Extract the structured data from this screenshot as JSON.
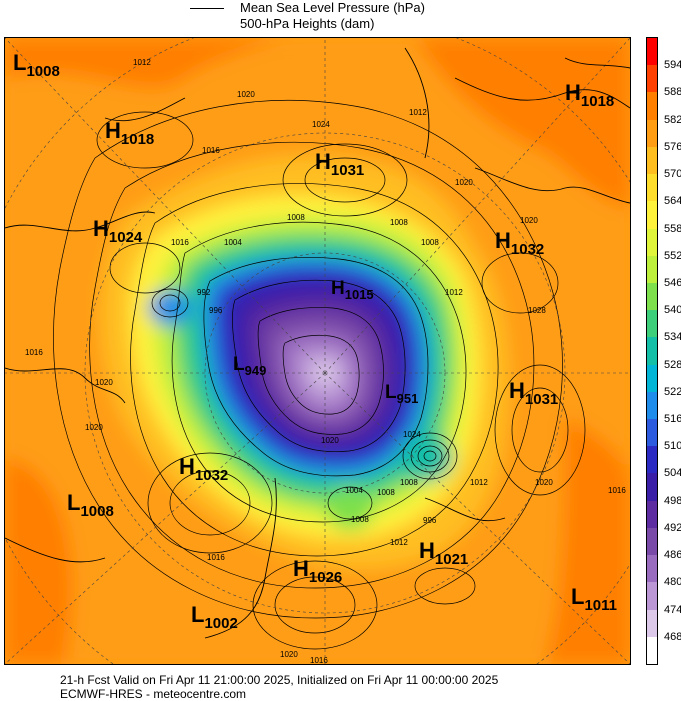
{
  "legend": {
    "mslp": "Mean Sea Level Pressure (hPa)",
    "heights": "500-hPa Heights (dam)"
  },
  "pressure_centers": [
    {
      "type": "L",
      "value": "1008"
    },
    {
      "type": "H",
      "value": "1018"
    },
    {
      "type": "H",
      "value": "1018"
    },
    {
      "type": "H",
      "value": "1031"
    },
    {
      "type": "H",
      "value": "1024"
    },
    {
      "type": "H",
      "value": "1032"
    },
    {
      "type": "H",
      "value": "1015"
    },
    {
      "type": "L",
      "value": "949"
    },
    {
      "type": "L",
      "value": "951"
    },
    {
      "type": "H",
      "value": "1031"
    },
    {
      "type": "H",
      "value": "1032"
    },
    {
      "type": "L",
      "value": "1008"
    },
    {
      "type": "H",
      "value": "1021"
    },
    {
      "type": "H",
      "value": "1026"
    },
    {
      "type": "L",
      "value": "1011"
    },
    {
      "type": "L",
      "value": "1002"
    }
  ],
  "isobar_labels": [
    "1012",
    "1020",
    "1024",
    "1016",
    "1020",
    "1016",
    "1012",
    "1008",
    "1008",
    "992",
    "1004",
    "996",
    "1012",
    "1020",
    "1008",
    "1016",
    "1020",
    "1020",
    "1028",
    "1016",
    "1020",
    "1024",
    "1020",
    "1012",
    "1016",
    "1008",
    "1004",
    "1008",
    "1008",
    "996",
    "1012",
    "1016",
    "1020"
  ],
  "colorbar": {
    "labels": [
      "594",
      "588",
      "582",
      "576",
      "570",
      "564",
      "558",
      "552",
      "546",
      "540",
      "534",
      "528",
      "522",
      "516",
      "510",
      "504",
      "498",
      "492",
      "486",
      "480",
      "474",
      "468"
    ],
    "colors": [
      "#ff0000",
      "#ff4000",
      "#ff7f00",
      "#ff9d14",
      "#ffbe20",
      "#ffdd2c",
      "#fff23c",
      "#dff53c",
      "#bdf03c",
      "#7de04c",
      "#3ecf7a",
      "#14bfa8",
      "#00b5d5",
      "#1e8cea",
      "#2c5be0",
      "#2b2bc3",
      "#3a1ea8",
      "#5c2ca0",
      "#7a4aa8",
      "#9a6cc0",
      "#bb98d5",
      "#dcc8e9",
      "#ffffff"
    ]
  },
  "footer": {
    "line1": "21-h Fcst Valid on Fri Apr 11 21:00:00 2025, Initialized on Fri Apr 11 00:00:00 2025",
    "line2": "ECMWF-HRES - meteocentre.com"
  }
}
